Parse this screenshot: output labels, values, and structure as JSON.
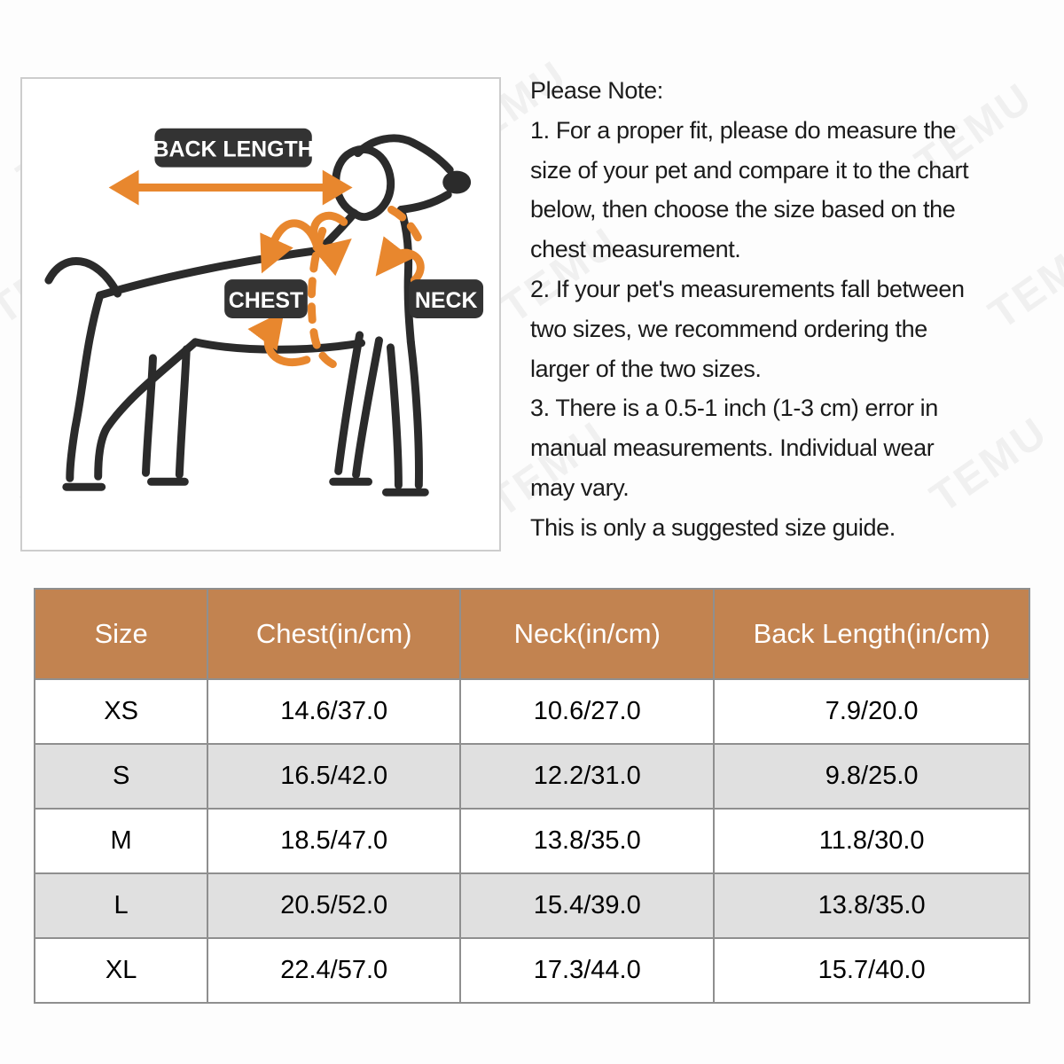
{
  "watermark": {
    "text": "TEMU"
  },
  "diagram": {
    "back_length_label": "BACK LENGTH",
    "chest_label": "CHEST",
    "neck_label": "NECK"
  },
  "notes": {
    "lines": [
      "Please Note:",
      "1. For a proper fit, please do measure the",
      "size of your pet and compare it to the chart",
      "below, then choose the size based on the",
      "chest measurement.",
      "2. If your pet's measurements fall between",
      "two sizes, we recommend ordering the",
      "larger of the two sizes.",
      "3. There is a 0.5-1 inch (1-3 cm) error in",
      "manual measurements. Individual wear",
      "may vary.",
      "This is only a suggested size guide."
    ]
  },
  "table": {
    "headers": [
      "Size",
      "Chest(in/cm)",
      "Neck(in/cm)",
      "Back Length(in/cm)"
    ],
    "rows": [
      [
        "XS",
        "14.6/37.0",
        "10.6/27.0",
        "7.9/20.0"
      ],
      [
        "S",
        "16.5/42.0",
        "12.2/31.0",
        "9.8/25.0"
      ],
      [
        "M",
        "18.5/47.0",
        "13.8/35.0",
        "11.8/30.0"
      ],
      [
        "L",
        "20.5/52.0",
        "15.4/39.0",
        "13.8/35.0"
      ],
      [
        "XL",
        "22.4/57.0",
        "17.3/44.0",
        "15.7/40.0"
      ]
    ]
  },
  "colors": {
    "header_bg": "#c28350",
    "row_alt_bg": "#e0e0e0",
    "arrow_orange": "#e8872e",
    "label_bg": "#333333",
    "outline_dark": "#2b2b2b",
    "grid_line": "#8f8f8f"
  }
}
